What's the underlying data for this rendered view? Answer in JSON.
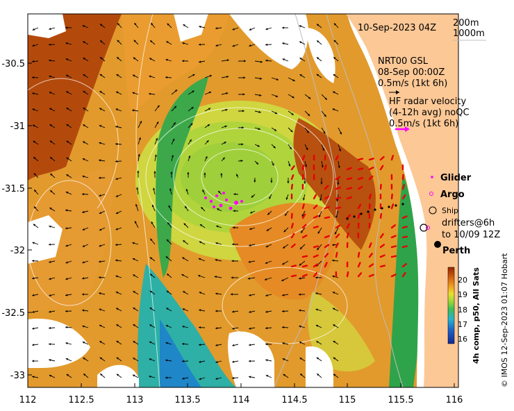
{
  "map": {
    "date_label": "10-Sep-2023 04Z",
    "isobath_labels": [
      "200m",
      "1000m"
    ],
    "lat_ticks": [
      "-30.5",
      "-31",
      "-31.5",
      "-32",
      "-32.5",
      "-33"
    ],
    "lon_ticks": [
      "112",
      "112.5",
      "113",
      "113.5",
      "114",
      "114.5",
      "115",
      "115.5",
      "116"
    ],
    "current_model": {
      "line1": "NRT00 GSL",
      "line2": "08-Sep 00:00Z",
      "scale": "0.5m/s (1kt 6h)"
    },
    "hf_radar": {
      "line1": "HF radar velocity",
      "line2": "(4-12h avg) noQC",
      "scale": "0.5m/s (1kt 6h)"
    },
    "legend": {
      "glider": "Glider",
      "argo": "Argo",
      "ship": "Ship",
      "drifters_line1": "drifters@6h",
      "drifters_line2": "to 10/09 12Z"
    },
    "city": "Perth",
    "colorbar": {
      "ticks": [
        "20",
        "19",
        "18",
        "17",
        "16"
      ],
      "title": "4h comp, p50, All Sats"
    },
    "credit": "© IMOS 12-Sep-2023 01:07 Hobart",
    "colors": {
      "land": "#fcc896",
      "hf_arrow": "#e60000",
      "glider": "#ff00ff",
      "coast_shelf": "#1a9e3c"
    }
  }
}
